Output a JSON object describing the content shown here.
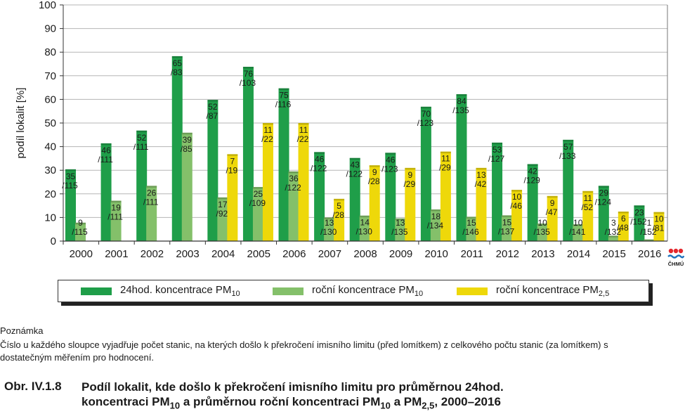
{
  "colors": {
    "pm10_24h": "#1f9e49",
    "pm10_annual": "#84c06a",
    "pm25_annual": "#eed80a",
    "grid": "#b5b5b5"
  },
  "legend": {
    "pm10_24h": {
      "text": "24hod. koncentrace PM",
      "sub": "10"
    },
    "pm10_annual": {
      "text": "roční koncentrace PM",
      "sub": "10"
    },
    "pm25_annual": {
      "text": "roční koncentrace PM",
      "sub": "2,5"
    }
  },
  "note": {
    "title": "Poznámka",
    "text": "Číslo u každého sloupce vyjadřuje počet stanic, na kterých došlo k překročení imisního limitu (před lomítkem) z celkového počtu stanic (za lomítkem) s dostatečným měřením pro hodnocení."
  },
  "caption": {
    "number": "Obr. IV.1.8",
    "line1": "Podíl lokalit, kde došlo k překročení imisního limitu pro průměrnou 24hod.",
    "line2_a": "koncentraci PM",
    "line2_sub1": "10",
    "line2_b": " a průměrnou roční koncentraci PM",
    "line2_sub2": "10",
    "line2_c": " a PM",
    "line2_sub3": "2,5",
    "line2_d": ", 2000–2016"
  },
  "logo": {
    "text": "ČHMÚ",
    "icon": "chmu-logo-icon"
  },
  "chart_data": {
    "type": "bar",
    "ylabel": "podíl lokalit [%]",
    "xlabel": "",
    "ylim": [
      0,
      100
    ],
    "yticks": [
      0,
      10,
      20,
      30,
      40,
      50,
      60,
      70,
      80,
      90,
      100
    ],
    "grid": true,
    "categories": [
      "2000",
      "2001",
      "2002",
      "2003",
      "2004",
      "2005",
      "2006",
      "2007",
      "2008",
      "2009",
      "2010",
      "2011",
      "2012",
      "2013",
      "2014",
      "2015",
      "2016"
    ],
    "series": [
      {
        "key": "pm10_24h",
        "name": "24hod. koncentrace PM10",
        "values": [
          30.4,
          41.4,
          46.8,
          78.3,
          59.8,
          73.8,
          64.7,
          37.7,
          35.2,
          37.4,
          56.9,
          62.2,
          41.7,
          32.6,
          42.9,
          23.4,
          15.1
        ],
        "labels": [
          [
            "35",
            "/115"
          ],
          [
            "46",
            "/111"
          ],
          [
            "52",
            "/111"
          ],
          [
            "65",
            "/83"
          ],
          [
            "52",
            "/87"
          ],
          [
            "76",
            "/103"
          ],
          [
            "75",
            "/116"
          ],
          [
            "46",
            "/122"
          ],
          [
            "43",
            "/122"
          ],
          [
            "46",
            "/123"
          ],
          [
            "70",
            "/123"
          ],
          [
            "84",
            "/135"
          ],
          [
            "53",
            "/127"
          ],
          [
            "42",
            "/129"
          ],
          [
            "57",
            "/133"
          ],
          [
            "29",
            "/124"
          ],
          [
            "23",
            "/152"
          ]
        ]
      },
      {
        "key": "pm10_annual",
        "name": "roční koncentrace PM10",
        "values": [
          7.8,
          17.1,
          23.4,
          45.9,
          18.5,
          22.9,
          29.5,
          10.0,
          10.8,
          9.6,
          13.4,
          10.3,
          10.9,
          7.4,
          7.1,
          2.3,
          0.7
        ],
        "labels": [
          [
            "9",
            "/115"
          ],
          [
            "19",
            "/111"
          ],
          [
            "26",
            "/111"
          ],
          [
            "39",
            "/85"
          ],
          [
            "17",
            "/92"
          ],
          [
            "25",
            "/109"
          ],
          [
            "36",
            "/122"
          ],
          [
            "13",
            "/130"
          ],
          [
            "14",
            "/130"
          ],
          [
            "13",
            "/135"
          ],
          [
            "18",
            "/134"
          ],
          [
            "15",
            "/146"
          ],
          [
            "15",
            "/137"
          ],
          [
            "10",
            "/135"
          ],
          [
            "10",
            "/141"
          ],
          [
            "3",
            "/132"
          ],
          [
            "1",
            "/152"
          ]
        ]
      },
      {
        "key": "pm25_annual",
        "name": "roční koncentrace PM2,5",
        "values": [
          null,
          null,
          null,
          null,
          36.8,
          50.0,
          50.0,
          17.9,
          32.1,
          31.0,
          37.9,
          31.0,
          21.7,
          19.1,
          21.2,
          12.5,
          12.3
        ],
        "labels": [
          null,
          null,
          null,
          null,
          [
            "7",
            "/19"
          ],
          [
            "11",
            "/22"
          ],
          [
            "11",
            "/22"
          ],
          [
            "5",
            "/28"
          ],
          [
            "9",
            "/28"
          ],
          [
            "9",
            "/29"
          ],
          [
            "11",
            "/29"
          ],
          [
            "13",
            "/42"
          ],
          [
            "10",
            "/46"
          ],
          [
            "9",
            "/47"
          ],
          [
            "11",
            "/52"
          ],
          [
            "6",
            "/48"
          ],
          [
            "10",
            "/81"
          ]
        ]
      }
    ]
  }
}
